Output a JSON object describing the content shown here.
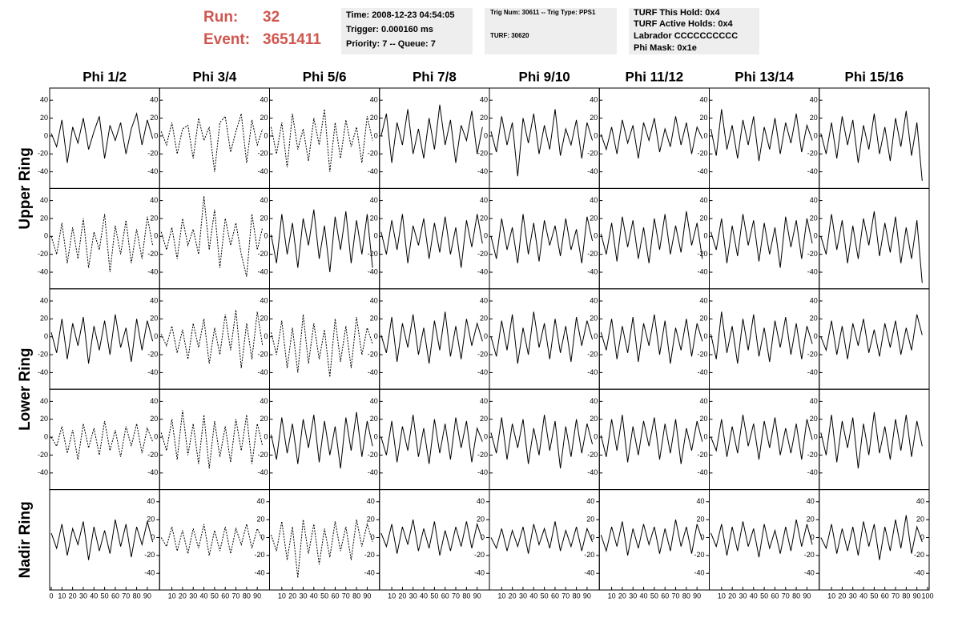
{
  "header": {
    "run_label": "Run:",
    "run": "32",
    "event_label": "Event:",
    "event": "3651411"
  },
  "info": [
    [
      "Time: 2008-12-23 04:54:05",
      "Trigger: 0.000160 ms",
      "Priority: 7 -- Queue: 7"
    ],
    [
      "Trig Num: 30611 -- Trig Type: PPS1",
      "TURF: 30620"
    ],
    [
      "TURF This Hold: 0x4",
      "TURF Active Holds: 0x4",
      "Labrador CCCCCCCCCC",
      "Phi Mask: 0x1e"
    ]
  ],
  "chart_data": {
    "type": "line",
    "columns": [
      "Phi 1/2",
      "Phi 3/4",
      "Phi 5/6",
      "Phi 7/8",
      "Phi 9/10",
      "Phi 11/12",
      "Phi 13/14",
      "Phi 15/16"
    ],
    "ring_labels": [
      "Upper Ring",
      "Lower Ring",
      "Nadir Ring"
    ],
    "xlim": [
      0,
      100
    ],
    "ylim": [
      -55,
      50
    ],
    "xticks": [
      0,
      10,
      20,
      30,
      40,
      50,
      60,
      70,
      80,
      90,
      100
    ],
    "yticks": [
      40,
      20,
      0,
      -20,
      -40
    ],
    "x": [
      0,
      5,
      10,
      15,
      20,
      25,
      30,
      35,
      40,
      45,
      50,
      55,
      60,
      65,
      70,
      75,
      80,
      85,
      90,
      95
    ],
    "color": "#000000",
    "panels": [
      [
        {
          "line_style": "solid",
          "values": [
            3,
            -12,
            18,
            -30,
            10,
            -8,
            20,
            -15,
            5,
            22,
            -25,
            12,
            -5,
            15,
            -20,
            8,
            25,
            -10,
            18,
            -3
          ]
        },
        {
          "line_style": "dashed",
          "values": [
            5,
            -10,
            15,
            -20,
            8,
            12,
            -25,
            20,
            -5,
            10,
            -40,
            15,
            22,
            -18,
            5,
            25,
            -30,
            18,
            -10,
            8
          ]
        },
        {
          "line_style": "dashed",
          "values": [
            10,
            -20,
            15,
            -35,
            25,
            -15,
            8,
            -28,
            20,
            -10,
            30,
            -40,
            15,
            -25,
            18,
            -12,
            10,
            -30,
            22,
            -5
          ]
        },
        {
          "line_style": "solid",
          "values": [
            0,
            25,
            -30,
            15,
            -10,
            30,
            -20,
            8,
            -25,
            20,
            -15,
            35,
            -10,
            18,
            -30,
            12,
            -5,
            28,
            -20,
            10
          ]
        },
        {
          "line_style": "solid",
          "values": [
            5,
            -18,
            22,
            -10,
            15,
            -45,
            20,
            -8,
            25,
            -20,
            12,
            -15,
            30,
            -22,
            8,
            -10,
            18,
            -25,
            15,
            -5
          ]
        },
        {
          "line_style": "solid",
          "values": [
            2,
            -15,
            10,
            -20,
            18,
            -8,
            12,
            -25,
            15,
            -5,
            20,
            -18,
            8,
            -12,
            22,
            -10,
            15,
            -20,
            10,
            -3
          ]
        },
        {
          "line_style": "solid",
          "values": [
            8,
            -22,
            30,
            -15,
            12,
            -25,
            18,
            -10,
            22,
            -28,
            10,
            -15,
            20,
            -20,
            15,
            -8,
            25,
            -18,
            12,
            -5
          ]
        },
        {
          "line_style": "solid",
          "values": [
            3,
            -20,
            15,
            -25,
            22,
            -10,
            18,
            -30,
            12,
            -15,
            25,
            -20,
            10,
            -28,
            20,
            -12,
            28,
            -22,
            15,
            -50
          ]
        }
      ],
      [
        {
          "line_style": "dashed",
          "values": [
            0,
            -20,
            15,
            -30,
            10,
            -25,
            20,
            -35,
            5,
            -15,
            25,
            -40,
            12,
            -20,
            18,
            -30,
            8,
            -25,
            22,
            -10
          ]
        },
        {
          "line_style": "dashed",
          "values": [
            5,
            -15,
            10,
            -25,
            20,
            -10,
            8,
            -20,
            45,
            -15,
            30,
            -35,
            20,
            -10,
            15,
            -20,
            -45,
            25,
            -15,
            10
          ]
        },
        {
          "line_style": "solid",
          "values": [
            2,
            -30,
            25,
            -20,
            15,
            -35,
            20,
            -10,
            30,
            -25,
            12,
            -40,
            22,
            -15,
            28,
            -30,
            18,
            -20,
            25,
            -35
          ]
        },
        {
          "line_style": "solid",
          "values": [
            5,
            -20,
            18,
            -15,
            25,
            -30,
            12,
            -10,
            20,
            -25,
            15,
            -18,
            22,
            -20,
            10,
            -35,
            18,
            -12,
            25,
            -8
          ]
        },
        {
          "line_style": "solid",
          "values": [
            0,
            -25,
            20,
            -15,
            10,
            -30,
            25,
            -20,
            15,
            -28,
            18,
            -10,
            12,
            -22,
            20,
            -15,
            8,
            -30,
            22,
            -5
          ]
        },
        {
          "line_style": "solid",
          "values": [
            3,
            -20,
            15,
            -28,
            22,
            -12,
            18,
            -25,
            10,
            -30,
            20,
            -15,
            25,
            -20,
            12,
            -18,
            28,
            -10,
            15,
            -25
          ]
        },
        {
          "line_style": "solid",
          "values": [
            5,
            -15,
            20,
            -30,
            12,
            -22,
            25,
            -10,
            18,
            -28,
            15,
            -20,
            10,
            -35,
            22,
            -12,
            18,
            -25,
            20,
            -8
          ]
        },
        {
          "line_style": "solid",
          "values": [
            0,
            -20,
            25,
            -15,
            18,
            -30,
            12,
            -25,
            20,
            -10,
            28,
            -22,
            15,
            -18,
            22,
            -30,
            10,
            -25,
            18,
            -52
          ]
        }
      ],
      [
        {
          "line_style": "solid",
          "values": [
            5,
            -18,
            20,
            -25,
            15,
            -10,
            22,
            -30,
            12,
            -15,
            18,
            -20,
            25,
            -12,
            10,
            -28,
            20,
            -15,
            18,
            -5
          ]
        },
        {
          "line_style": "dashed",
          "values": [
            3,
            -10,
            12,
            -18,
            8,
            -25,
            15,
            -12,
            20,
            -30,
            10,
            -20,
            25,
            -15,
            30,
            -35,
            15,
            -25,
            28,
            -10
          ]
        },
        {
          "line_style": "dashed",
          "values": [
            5,
            -20,
            18,
            -35,
            10,
            -40,
            25,
            -30,
            15,
            -25,
            8,
            -45,
            20,
            -28,
            12,
            -35,
            22,
            -20,
            10,
            -8
          ]
        },
        {
          "line_style": "solid",
          "values": [
            2,
            -18,
            22,
            -28,
            15,
            -12,
            25,
            -20,
            10,
            -30,
            18,
            -15,
            28,
            -22,
            12,
            -25,
            20,
            -10,
            15,
            -5
          ]
        },
        {
          "line_style": "solid",
          "values": [
            0,
            -22,
            18,
            -15,
            25,
            -30,
            10,
            -20,
            28,
            -12,
            15,
            -25,
            20,
            -18,
            12,
            -28,
            22,
            -10,
            18,
            -3
          ]
        },
        {
          "line_style": "solid",
          "values": [
            5,
            -15,
            20,
            -25,
            12,
            -18,
            22,
            -28,
            15,
            -10,
            25,
            -20,
            18,
            -30,
            10,
            -15,
            20,
            -22,
            15,
            -5
          ]
        },
        {
          "line_style": "solid",
          "values": [
            3,
            -25,
            28,
            -18,
            12,
            -30,
            20,
            -15,
            25,
            -22,
            10,
            -28,
            18,
            -12,
            22,
            -20,
            15,
            -25,
            12,
            -8
          ]
        },
        {
          "line_style": "solid",
          "values": [
            0,
            -15,
            18,
            -20,
            12,
            -25,
            15,
            -10,
            20,
            -18,
            8,
            -22,
            15,
            -12,
            18,
            -20,
            10,
            -15,
            25,
            2
          ]
        }
      ],
      [
        {
          "line_style": "dashed",
          "values": [
            0,
            -10,
            12,
            -18,
            8,
            -25,
            15,
            -12,
            10,
            -20,
            18,
            -15,
            8,
            -22,
            12,
            -10,
            15,
            -18,
            10,
            -5
          ]
        },
        {
          "line_style": "dashed",
          "values": [
            5,
            -15,
            20,
            -25,
            30,
            -20,
            15,
            -30,
            25,
            -35,
            18,
            -22,
            12,
            -28,
            20,
            -15,
            25,
            -30,
            15,
            -10
          ]
        },
        {
          "line_style": "solid",
          "values": [
            3,
            -25,
            22,
            -18,
            15,
            -30,
            20,
            -12,
            25,
            -28,
            18,
            -20,
            12,
            -35,
            22,
            -15,
            28,
            -22,
            18,
            -10
          ]
        },
        {
          "line_style": "solid",
          "values": [
            0,
            -20,
            18,
            -28,
            12,
            -15,
            25,
            -22,
            10,
            -30,
            20,
            -18,
            15,
            -25,
            22,
            -12,
            18,
            -28,
            10,
            -5
          ]
        },
        {
          "line_style": "solid",
          "values": [
            5,
            -18,
            22,
            -25,
            15,
            -12,
            20,
            -30,
            10,
            -20,
            25,
            -15,
            18,
            -35,
            12,
            -22,
            20,
            -18,
            15,
            -8
          ]
        },
        {
          "line_style": "solid",
          "values": [
            2,
            -22,
            20,
            -15,
            25,
            -28,
            12,
            -20,
            18,
            -10,
            22,
            -25,
            15,
            -18,
            20,
            -30,
            10,
            -15,
            18,
            -5
          ]
        },
        {
          "line_style": "solid",
          "values": [
            0,
            -15,
            20,
            -22,
            12,
            -18,
            25,
            -10,
            15,
            -25,
            18,
            -12,
            22,
            -20,
            10,
            -18,
            15,
            -25,
            20,
            -3
          ]
        },
        {
          "line_style": "solid",
          "values": [
            5,
            -20,
            25,
            -28,
            18,
            -12,
            22,
            -35,
            15,
            -20,
            28,
            -18,
            12,
            -25,
            20,
            -15,
            25,
            -22,
            18,
            -10
          ]
        }
      ],
      [
        {
          "line_style": "solid",
          "values": [
            5,
            -12,
            15,
            -20,
            10,
            -8,
            18,
            -25,
            12,
            -15,
            8,
            -18,
            20,
            -10,
            15,
            -22,
            12,
            -8,
            18,
            -5
          ]
        },
        {
          "line_style": "dashed",
          "values": [
            0,
            -10,
            12,
            -15,
            8,
            -18,
            10,
            -12,
            15,
            -20,
            8,
            -15,
            12,
            -18,
            10,
            -8,
            15,
            -12,
            10,
            -3
          ]
        },
        {
          "line_style": "dashed",
          "values": [
            3,
            -15,
            18,
            -25,
            12,
            -45,
            20,
            -18,
            15,
            -30,
            10,
            -22,
            18,
            -15,
            12,
            -25,
            20,
            -10,
            15,
            -5
          ]
        },
        {
          "line_style": "solid",
          "values": [
            5,
            -10,
            15,
            -18,
            12,
            -8,
            20,
            -15,
            10,
            -12,
            18,
            -20,
            8,
            -15,
            12,
            -10,
            18,
            -12,
            15,
            -3
          ]
        },
        {
          "line_style": "solid",
          "values": [
            0,
            -12,
            10,
            -15,
            8,
            -10,
            12,
            -18,
            15,
            -8,
            10,
            -12,
            18,
            -15,
            8,
            -10,
            12,
            -15,
            10,
            -5
          ]
        },
        {
          "line_style": "solid",
          "values": [
            3,
            -15,
            12,
            -10,
            18,
            -20,
            10,
            -12,
            15,
            -8,
            12,
            -18,
            10,
            -15,
            20,
            -10,
            12,
            -18,
            15,
            -3
          ]
        },
        {
          "line_style": "solid",
          "values": [
            5,
            -10,
            15,
            -20,
            12,
            -15,
            18,
            -10,
            10,
            -22,
            15,
            -12,
            8,
            -18,
            12,
            -15,
            20,
            -10,
            15,
            -8
          ]
        },
        {
          "line_style": "solid",
          "values": [
            0,
            -12,
            15,
            -18,
            10,
            -15,
            12,
            -20,
            18,
            -10,
            15,
            -25,
            12,
            -15,
            20,
            -12,
            25,
            -18,
            12,
            -5
          ]
        }
      ]
    ]
  }
}
